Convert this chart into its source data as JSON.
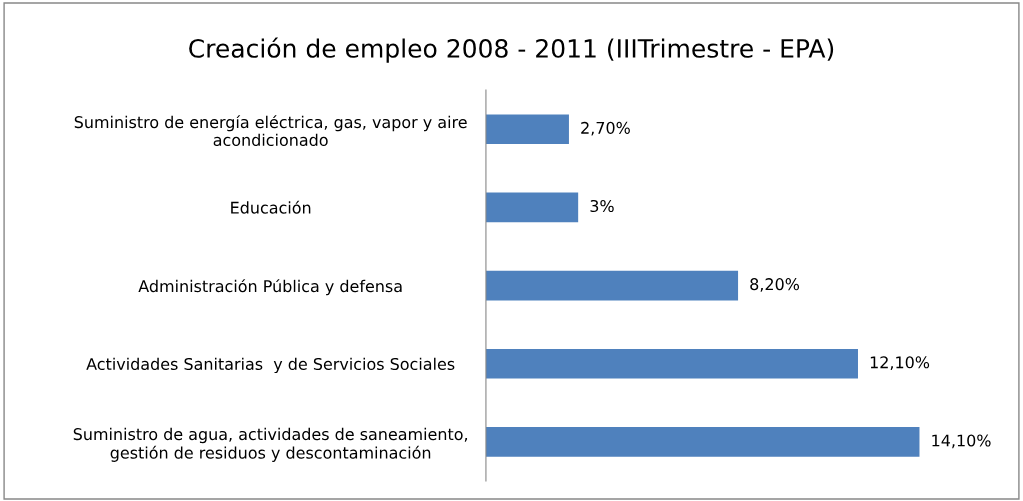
{
  "chart_data": {
    "type": "bar",
    "orientation": "horizontal",
    "title": "Creación de empleo 2008 - 2011 (IIITrimestre - EPA)",
    "categories": [
      "Suministro de energía eléctrica, gas, vapor y aire\nacondicionado",
      "Educación",
      "Administración Pública y defensa",
      "Actividades Sanitarias  y de Servicios Sociales",
      "Suministro de agua, actividades de saneamiento,\ngestión de residuos y descontaminación"
    ],
    "values": [
      2.7,
      3,
      8.2,
      12.1,
      14.1
    ],
    "value_labels": [
      "2,70%",
      "3%",
      "8,20%",
      "12,10%",
      "14,10%"
    ],
    "color": "#4f81bd",
    "tick_labels": "y",
    "grid": false,
    "legend": false
  }
}
